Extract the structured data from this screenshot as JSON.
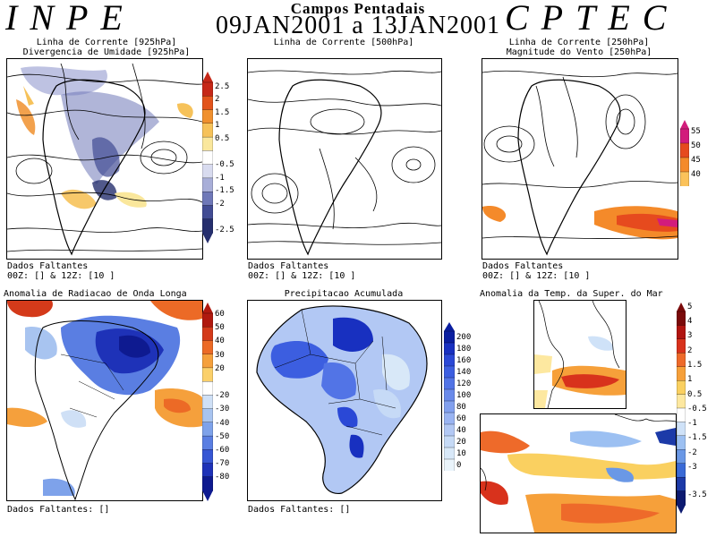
{
  "header": {
    "left": "INPE",
    "center_title": "Campos Pentadais",
    "date_start": "09JAN2001",
    "date_sep": "a",
    "date_end": "13JAN2001",
    "right": "CPTEC"
  },
  "panels": {
    "p1": {
      "title_lines": [
        "Linha de Corrente [925hPa]",
        "Divergencia de Umidade [925hPa]"
      ],
      "missing": "Dados Faltantes",
      "hours": "00Z: [] & 12Z: [10 ]",
      "scale": {
        "labels": [
          "2.5",
          "2",
          "1.5",
          "1",
          "0.5",
          "-0.5",
          "-1",
          "-1.5",
          "-2",
          "-2.5"
        ],
        "colors": [
          "#c62818",
          "#e2541c",
          "#f0902e",
          "#f6c25a",
          "#fae79c",
          "#ffffff",
          "#d8dbef",
          "#a8aed8",
          "#6f78b8",
          "#424c94",
          "#262f6e"
        ]
      }
    },
    "p2": {
      "title_lines": [
        "Linha de Corrente [500hPa]"
      ],
      "missing": "Dados Faltantes",
      "hours": "00Z: [] & 12Z: [10 ]"
    },
    "p3": {
      "title_lines": [
        "Linha de Corrente [250hPa]",
        "Magnitude do Vento [250hPa]"
      ],
      "missing": "Dados Faltantes",
      "hours": "00Z: [] & 12Z: [10 ]",
      "scale": {
        "labels": [
          "55",
          "50",
          "45",
          "40"
        ],
        "colors": [
          "#d21c7c",
          "#e64a1e",
          "#f48a2a",
          "#fbc25a"
        ]
      }
    },
    "p4": {
      "title": "Anomalia de Radiacao de Onda Longa",
      "missing": "Dados Faltantes: []",
      "scale": {
        "labels": [
          "60",
          "50",
          "40",
          "30",
          "20",
          "-20",
          "-30",
          "-40",
          "-50",
          "-60",
          "-70",
          "-80"
        ],
        "colors": [
          "#b0180e",
          "#d43a1a",
          "#ec6a26",
          "#f5a03c",
          "#fbd06a",
          "#ffffff",
          "#cfe0f6",
          "#a8c4f0",
          "#7ea2ea",
          "#5a7ee2",
          "#3656d4",
          "#1e32b8",
          "#0e1a90"
        ]
      }
    },
    "p5": {
      "title": "Precipitacao Acumulada",
      "missing": "Dados Faltantes: []",
      "scale": {
        "labels": [
          "200",
          "180",
          "160",
          "140",
          "120",
          "100",
          "80",
          "60",
          "40",
          "20",
          "10",
          "0"
        ],
        "colors": [
          "#0a1ea0",
          "#1830c0",
          "#2a48d6",
          "#3c5ee0",
          "#5274e6",
          "#6a8aea",
          "#82a0ee",
          "#9ab4f2",
          "#b2c8f4",
          "#c6daf6",
          "#d8e8f8",
          "#eaf4fb"
        ]
      }
    },
    "p6": {
      "title": "Anomalia da Temp. da Super. do Mar",
      "scale": {
        "labels": [
          "5",
          "4",
          "3",
          "2",
          "1.5",
          "1",
          "0.5",
          "-0.5",
          "-1",
          "-1.5",
          "-2",
          "-3",
          "-3.5"
        ],
        "colors": [
          "#7a0a0a",
          "#b01410",
          "#d8321c",
          "#ee6a2a",
          "#f6a03a",
          "#fad060",
          "#fde8a0",
          "#ffffff",
          "#cfe2f8",
          "#9cc0f2",
          "#6a98e6",
          "#3a6ad6",
          "#1c3aa8",
          "#0c1a70"
        ]
      }
    }
  }
}
